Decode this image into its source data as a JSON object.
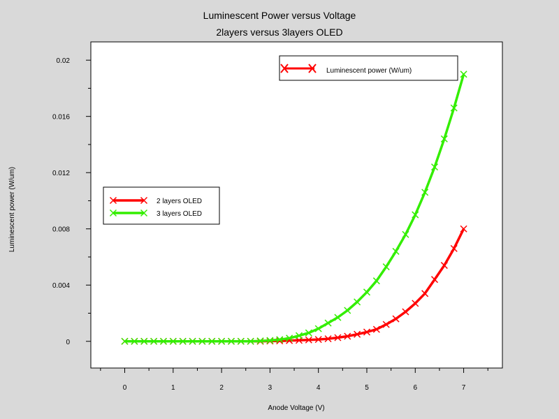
{
  "chart_data": {
    "type": "line",
    "title": "Luminescent Power versus Voltage",
    "subtitle": "2layers versus 3layers OLED",
    "xlabel": "Anode Voltage (V)",
    "ylabel": "Luminescent power (W/um)",
    "xlim": [
      -0.7,
      7.8
    ],
    "ylim": [
      -0.0019,
      0.0213
    ],
    "x_ticks": [
      0,
      1,
      2,
      3,
      4,
      5,
      6,
      7
    ],
    "y_ticks": [
      0,
      0.004,
      0.008,
      0.012,
      0.016,
      0.02
    ],
    "x_tick_labels": [
      "0",
      "1",
      "2",
      "3",
      "4",
      "5",
      "6",
      "7"
    ],
    "y_tick_labels": [
      "0",
      "0.004",
      "0.008",
      "0.012",
      "0.016",
      "0.02"
    ],
    "grid": false,
    "legend_title": "Luminescent power (W/um)",
    "legend_title_color": "#ff0000",
    "legend_placement": "left-middle",
    "series": [
      {
        "name": "2 layers OLED",
        "color": "#ff0000",
        "marker": "x",
        "x": [
          0,
          0.2,
          0.4,
          0.6,
          0.8,
          1.0,
          1.2,
          1.4,
          1.6,
          1.8,
          2.0,
          2.2,
          2.4,
          2.6,
          2.8,
          3.0,
          3.2,
          3.4,
          3.6,
          3.8,
          4.0,
          4.2,
          4.4,
          4.6,
          4.8,
          5.0,
          5.2,
          5.4,
          5.6,
          5.8,
          6.0,
          6.2,
          6.4,
          6.6,
          6.8,
          7.0
        ],
        "y": [
          0,
          0,
          0,
          0,
          0,
          0,
          0,
          0,
          0,
          0,
          0,
          0,
          0,
          0,
          0,
          2e-05,
          3e-05,
          5e-05,
          7e-05,
          0.0001,
          0.00013,
          0.00018,
          0.00026,
          0.00036,
          0.0005,
          0.00066,
          0.00085,
          0.0012,
          0.0016,
          0.0021,
          0.0027,
          0.0034,
          0.0044,
          0.0054,
          0.0066,
          0.008
        ]
      },
      {
        "name": "3 layers OLED",
        "color": "#33ee00",
        "marker": "x",
        "x": [
          0,
          0.2,
          0.4,
          0.6,
          0.8,
          1.0,
          1.2,
          1.4,
          1.6,
          1.8,
          2.0,
          2.2,
          2.4,
          2.6,
          2.8,
          3.0,
          3.2,
          3.4,
          3.6,
          3.8,
          4.0,
          4.2,
          4.4,
          4.6,
          4.8,
          5.0,
          5.2,
          5.4,
          5.6,
          5.8,
          6.0,
          6.2,
          6.4,
          6.6,
          6.8,
          7.0
        ],
        "y": [
          0,
          0,
          0,
          0,
          0,
          0,
          0,
          0,
          0,
          0,
          0,
          0,
          0,
          0,
          3e-05,
          6e-05,
          0.00012,
          0.00022,
          0.0004,
          0.0006,
          0.0009,
          0.0013,
          0.0017,
          0.0022,
          0.0028,
          0.0035,
          0.0043,
          0.0053,
          0.0064,
          0.0076,
          0.009,
          0.0106,
          0.0124,
          0.0144,
          0.0166,
          0.019
        ]
      }
    ]
  }
}
